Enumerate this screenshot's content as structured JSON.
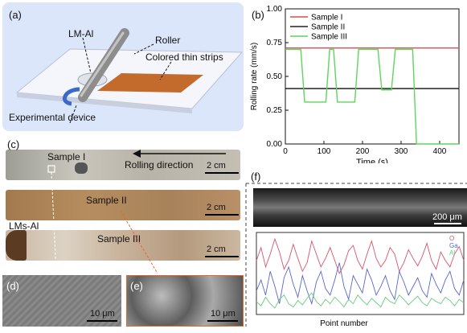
{
  "panel_a": {
    "label": "(a)",
    "annotations": {
      "lm_al": "LM-Al",
      "roller": "Roller",
      "strips": "Colored thin strips",
      "device": "Experimental device"
    },
    "colors": {
      "background": "#dce6fa",
      "strip": "#c36a2d",
      "roller": "#8d8d8d"
    }
  },
  "panel_b": {
    "label": "(b)"
  },
  "chart_data": [
    {
      "type": "line",
      "xlabel": "Time (s)",
      "ylabel": "Rolling rate (mm/s)",
      "xlim": [
        0,
        450
      ],
      "ylim": [
        0,
        1.0
      ],
      "xticks": [
        "0",
        "100",
        "200",
        "300",
        "400"
      ],
      "yticks": [
        "0.00",
        "0.25",
        "0.50",
        "0.75",
        "1.00"
      ],
      "legend_placement": "top-left",
      "series": [
        {
          "name": "Sample I",
          "color": "#e8474b",
          "x": [
            0,
            450
          ],
          "y": [
            0.71,
            0.71
          ]
        },
        {
          "name": "Sample II",
          "color": "#222222",
          "x": [
            0,
            450
          ],
          "y": [
            0.41,
            0.41
          ]
        },
        {
          "name": "Sample III",
          "color": "#5cd65c",
          "x": [
            0,
            40,
            50,
            105,
            115,
            125,
            135,
            180,
            190,
            240,
            250,
            275,
            285,
            315,
            325,
            330,
            340,
            450
          ],
          "y": [
            0.7,
            0.7,
            0.31,
            0.31,
            0.7,
            0.7,
            0.31,
            0.31,
            0.7,
            0.7,
            0.4,
            0.4,
            0.7,
            0.7,
            0.7,
            0.7,
            0.0,
            0.0
          ]
        }
      ]
    },
    {
      "type": "line",
      "xlabel": "Point number",
      "legend_placement": "top-right",
      "series": [
        {
          "name": "O",
          "color": "#d9536a",
          "y": [
            700,
            820,
            640,
            760,
            900,
            780,
            620,
            700,
            850,
            720,
            600,
            680,
            880,
            760,
            640,
            720,
            820,
            700,
            580,
            660,
            790,
            840,
            700,
            620,
            760,
            880,
            720,
            640,
            700,
            820,
            760,
            600,
            680,
            800,
            720,
            650,
            740,
            860,
            700,
            620,
            780,
            700,
            640,
            760,
            830,
            700
          ]
        },
        {
          "name": "Ga",
          "color": "#5566cc",
          "y": [
            420,
            520,
            380,
            600,
            460,
            300,
            540,
            640,
            480,
            360,
            560,
            420,
            300,
            500,
            600,
            440,
            380,
            520,
            680,
            460,
            340,
            560,
            480,
            400,
            620,
            520,
            380,
            460,
            560,
            420,
            340,
            600,
            500,
            380,
            460,
            540,
            420,
            360,
            580,
            480,
            400,
            520,
            600,
            440,
            380,
            520
          ]
        },
        {
          "name": "Al",
          "color": "#66cc77",
          "y": [
            320,
            280,
            360,
            300,
            260,
            340,
            380,
            300,
            270,
            330,
            290,
            350,
            400,
            320,
            280,
            340,
            300,
            360,
            320,
            270,
            340,
            300,
            380,
            330,
            290,
            350,
            310,
            270,
            360,
            320,
            300,
            380,
            340,
            290,
            330,
            370,
            310,
            280,
            350,
            320,
            300,
            360,
            330,
            280,
            340,
            310
          ]
        }
      ]
    }
  ],
  "panel_c": {
    "label": "(c)",
    "sample1": "Sample I",
    "direction": "Rolling direction",
    "sample2": "Sample II",
    "sample3": "Sample III",
    "lms_al": "LMs-Al",
    "scale1": "2 cm",
    "scale2": "2 cm",
    "scale3": "2 cm"
  },
  "panel_d": {
    "label": "(d)",
    "scale": "10 μm"
  },
  "panel_e": {
    "label": "(e)",
    "scale": "10 μm"
  },
  "panel_f": {
    "label": "(f)",
    "scale": "200 μm"
  }
}
